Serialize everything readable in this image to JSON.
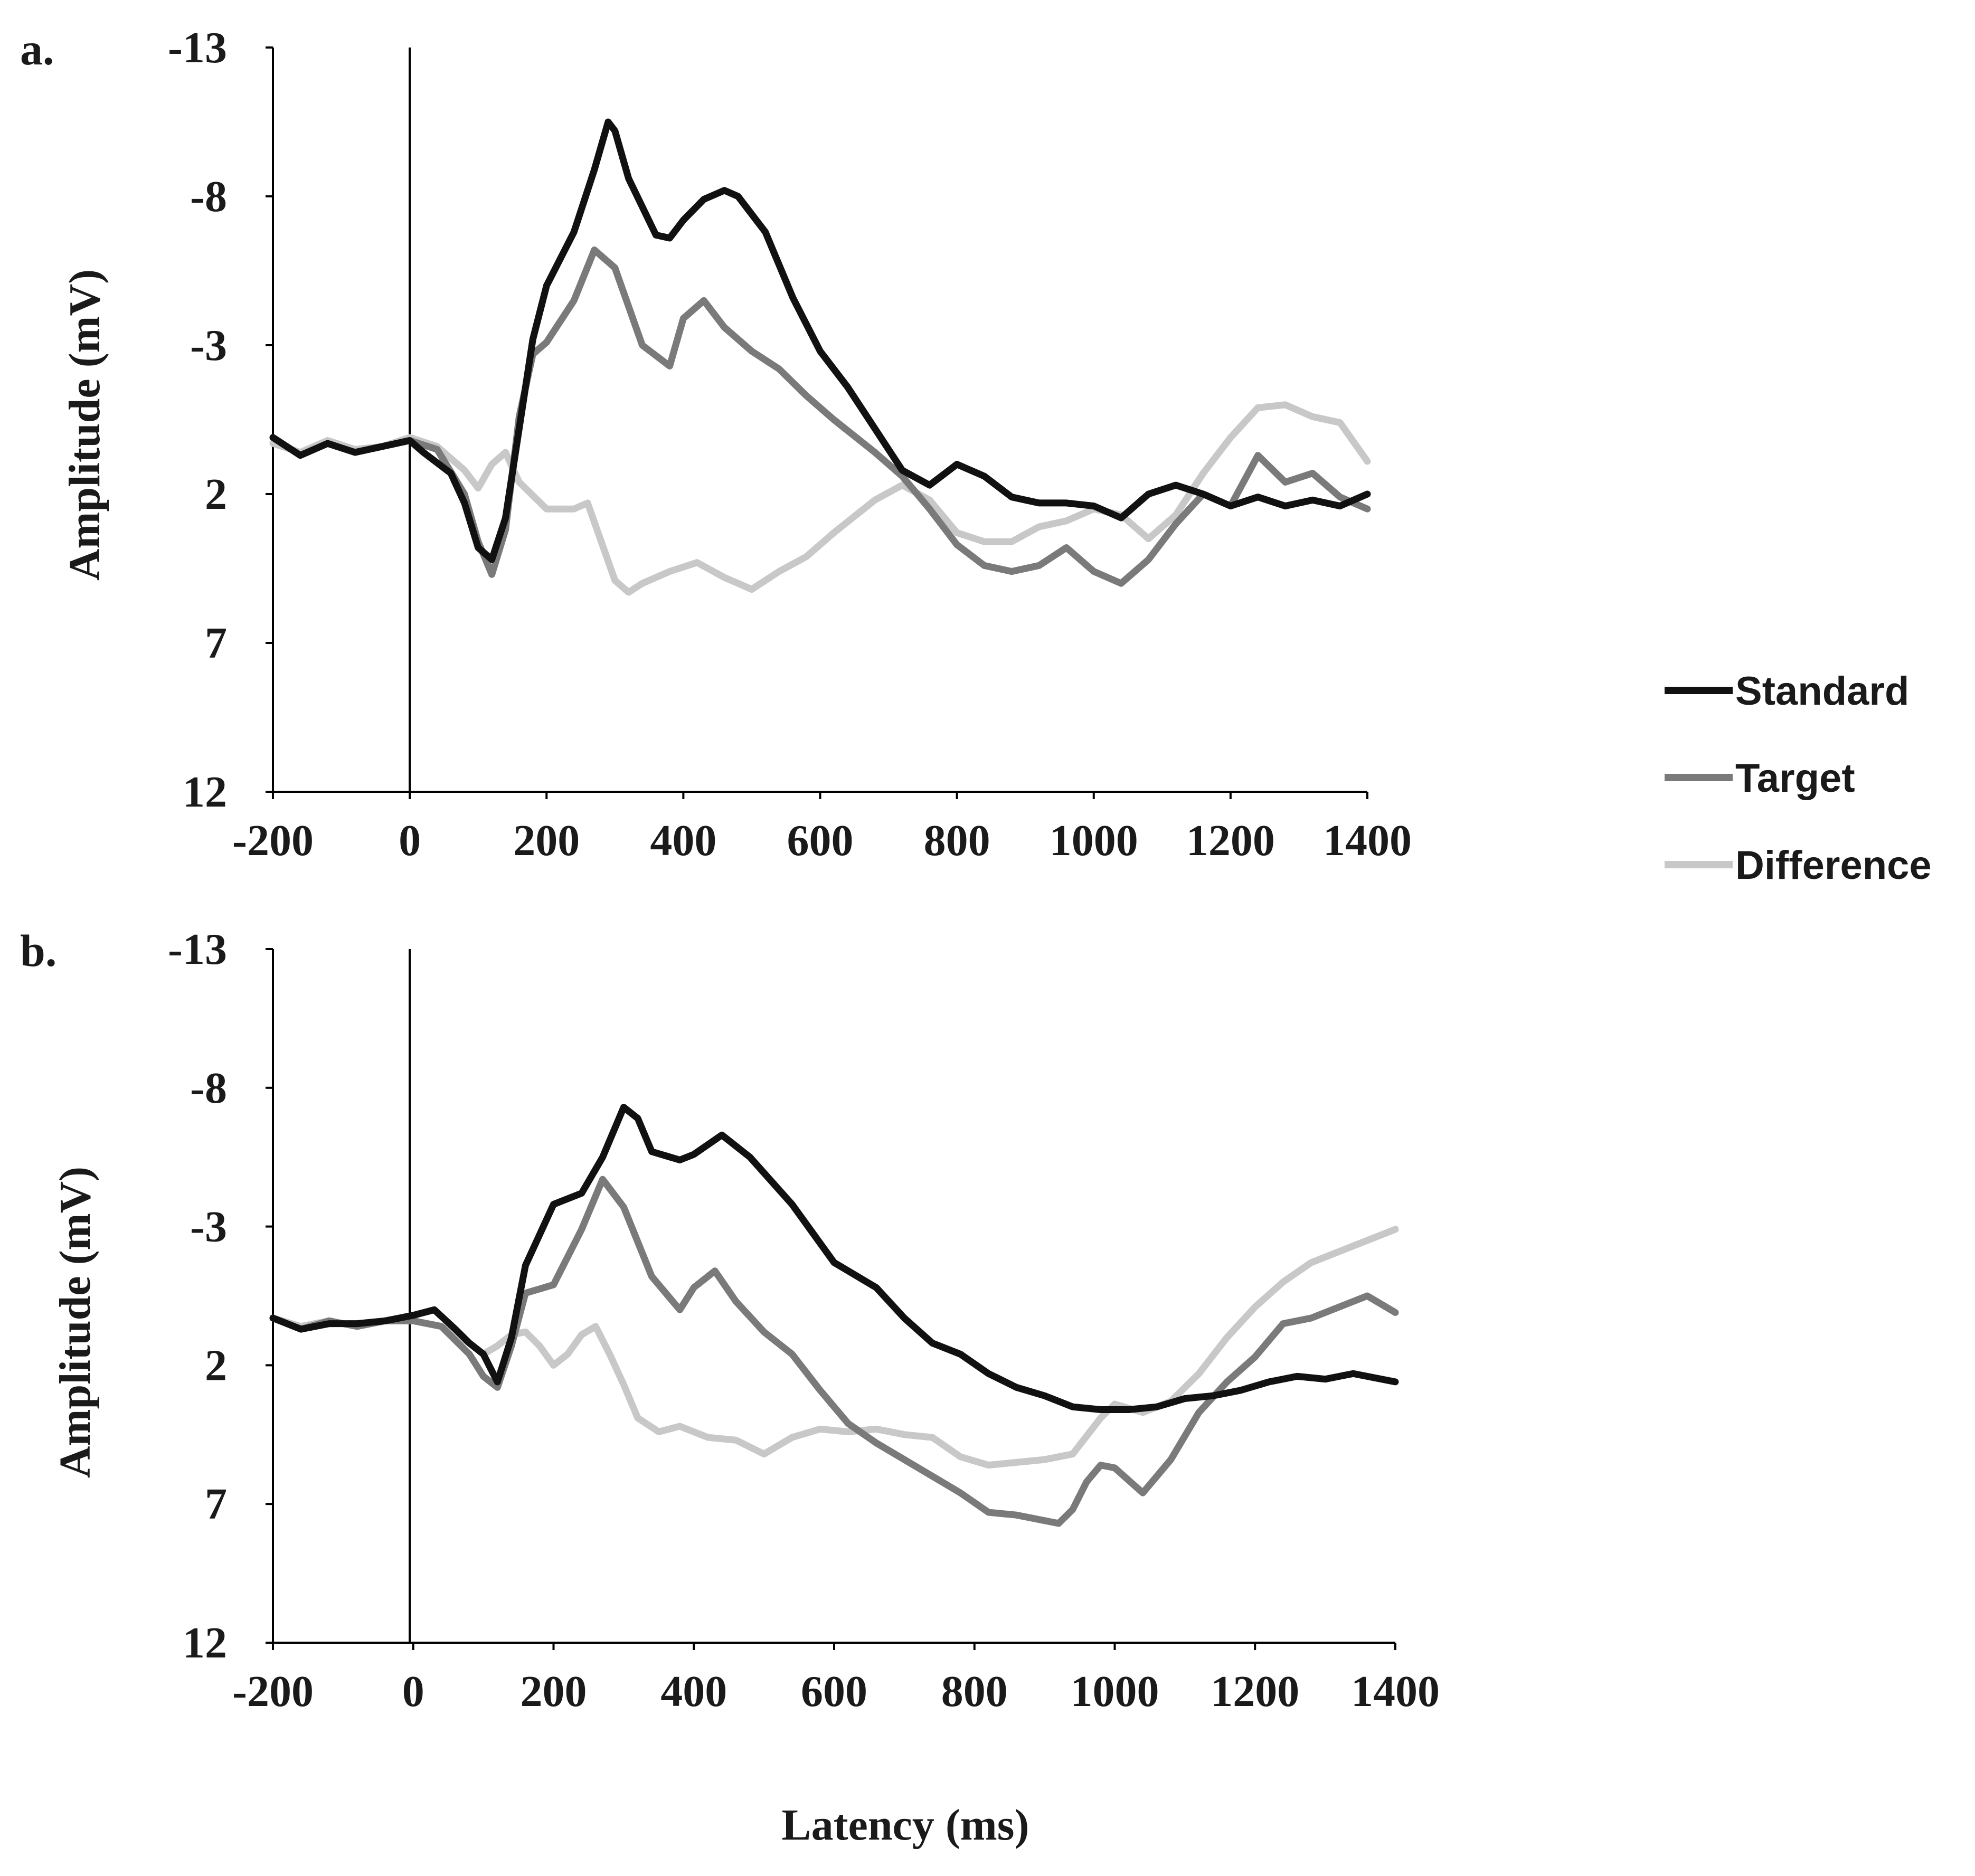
{
  "figure": {
    "x_axis_title": "Latency (ms)",
    "legend": [
      {
        "name": "Standard",
        "color": "#111111"
      },
      {
        "name": "Target",
        "color": "#7a7a7a"
      },
      {
        "name": "Difference",
        "color": "#c8c8c8"
      }
    ]
  },
  "chart_data": [
    {
      "type": "line",
      "panel_label": "a.",
      "title": "",
      "xlabel": "Latency (ms)",
      "ylabel": "Amplitude (mV)",
      "xlim": [
        -200,
        1400
      ],
      "ylim": [
        12,
        -13
      ],
      "y_inverted": true,
      "xticks": [
        -200,
        0,
        200,
        400,
        600,
        800,
        1000,
        1200,
        1400
      ],
      "yticks": [
        -13,
        -8,
        -3,
        2,
        7,
        12
      ],
      "series": [
        {
          "name": "Standard",
          "color": "#111111",
          "x": [
            -200,
            -160,
            -120,
            -80,
            -40,
            0,
            20,
            60,
            80,
            100,
            120,
            140,
            160,
            180,
            200,
            240,
            270,
            290,
            300,
            320,
            360,
            380,
            400,
            430,
            460,
            480,
            520,
            560,
            600,
            640,
            680,
            720,
            760,
            800,
            840,
            880,
            920,
            960,
            1000,
            1040,
            1080,
            1120,
            1160,
            1200,
            1240,
            1280,
            1320,
            1360,
            1400
          ],
          "y": [
            0.1,
            0.7,
            0.3,
            0.6,
            0.4,
            0.2,
            0.6,
            1.3,
            2.3,
            3.8,
            4.2,
            2.8,
            -0.2,
            -3.2,
            -5.0,
            -6.8,
            -8.9,
            -10.5,
            -10.2,
            -8.6,
            -6.7,
            -6.6,
            -7.2,
            -7.9,
            -8.2,
            -8.0,
            -6.8,
            -4.6,
            -2.8,
            -1.6,
            -0.2,
            1.2,
            1.7,
            1.0,
            1.4,
            2.1,
            2.3,
            2.3,
            2.4,
            2.8,
            2.0,
            1.7,
            2.0,
            2.4,
            2.1,
            2.4,
            2.2,
            2.4,
            2.0
          ]
        },
        {
          "name": "Target",
          "color": "#7a7a7a",
          "x": [
            -200,
            -160,
            -120,
            -80,
            -40,
            0,
            40,
            80,
            100,
            120,
            140,
            160,
            180,
            200,
            240,
            270,
            300,
            340,
            380,
            400,
            430,
            460,
            500,
            540,
            580,
            620,
            680,
            720,
            760,
            800,
            840,
            880,
            920,
            960,
            1000,
            1040,
            1080,
            1120,
            1160,
            1200,
            1240,
            1280,
            1320,
            1360,
            1400
          ],
          "y": [
            0.1,
            0.7,
            0.3,
            0.6,
            0.4,
            0.2,
            0.5,
            2.0,
            3.6,
            4.7,
            3.2,
            -0.6,
            -2.7,
            -3.1,
            -4.5,
            -6.2,
            -5.6,
            -3.0,
            -2.3,
            -3.9,
            -4.5,
            -3.6,
            -2.8,
            -2.2,
            -1.3,
            -0.5,
            0.6,
            1.4,
            2.5,
            3.7,
            4.4,
            4.6,
            4.4,
            3.8,
            4.6,
            5.0,
            4.2,
            3.0,
            2.0,
            2.4,
            0.7,
            1.6,
            1.3,
            2.1,
            2.5
          ]
        },
        {
          "name": "Difference",
          "color": "#c8c8c8",
          "x": [
            -200,
            -160,
            -120,
            -80,
            -40,
            0,
            40,
            80,
            100,
            120,
            140,
            160,
            200,
            240,
            260,
            280,
            300,
            320,
            340,
            380,
            420,
            460,
            500,
            540,
            580,
            620,
            680,
            720,
            760,
            800,
            840,
            880,
            920,
            960,
            1000,
            1040,
            1080,
            1120,
            1160,
            1200,
            1240,
            1280,
            1320,
            1360,
            1400
          ],
          "y": [
            0.3,
            0.6,
            0.2,
            0.5,
            0.4,
            0.1,
            0.4,
            1.2,
            1.8,
            1.0,
            0.6,
            1.6,
            2.5,
            2.5,
            2.3,
            3.6,
            4.9,
            5.3,
            5.0,
            4.6,
            4.3,
            4.8,
            5.2,
            4.6,
            4.1,
            3.3,
            2.2,
            1.7,
            2.2,
            3.3,
            3.6,
            3.6,
            3.1,
            2.9,
            2.5,
            2.7,
            3.5,
            2.7,
            1.3,
            0.1,
            -0.9,
            -1.0,
            -0.6,
            -0.4,
            0.9
          ]
        }
      ]
    },
    {
      "type": "line",
      "panel_label": "b.",
      "title": "",
      "xlabel": "Latency (ms)",
      "ylabel": "Amplitude (mV)",
      "xlim": [
        -200,
        1400
      ],
      "ylim": [
        12,
        -13
      ],
      "y_inverted": true,
      "xticks": [
        -200,
        0,
        200,
        400,
        600,
        800,
        1000,
        1200,
        1400
      ],
      "yticks": [
        -13,
        -8,
        -3,
        2,
        7,
        12
      ],
      "series": [
        {
          "name": "Standard",
          "color": "#111111",
          "x": [
            -200,
            -160,
            -120,
            -80,
            -40,
            0,
            30,
            60,
            80,
            100,
            120,
            140,
            160,
            200,
            240,
            270,
            300,
            320,
            340,
            380,
            400,
            440,
            480,
            540,
            600,
            660,
            700,
            740,
            780,
            820,
            860,
            900,
            940,
            980,
            1020,
            1060,
            1100,
            1140,
            1180,
            1220,
            1260,
            1300,
            1340,
            1400
          ],
          "y": [
            0.3,
            0.7,
            0.5,
            0.5,
            0.4,
            0.2,
            0.0,
            0.7,
            1.2,
            1.6,
            2.6,
            1.0,
            -1.6,
            -3.8,
            -4.2,
            -5.5,
            -7.3,
            -6.9,
            -5.7,
            -5.4,
            -5.6,
            -6.3,
            -5.5,
            -3.8,
            -1.7,
            -0.8,
            0.3,
            1.2,
            1.6,
            2.3,
            2.8,
            3.1,
            3.5,
            3.6,
            3.6,
            3.5,
            3.2,
            3.1,
            2.9,
            2.6,
            2.4,
            2.5,
            2.3,
            2.6
          ]
        },
        {
          "name": "Target",
          "color": "#7a7a7a",
          "x": [
            -200,
            -160,
            -120,
            -80,
            -40,
            0,
            40,
            80,
            100,
            120,
            140,
            160,
            200,
            240,
            270,
            300,
            340,
            380,
            400,
            430,
            460,
            500,
            540,
            580,
            620,
            660,
            700,
            740,
            780,
            820,
            860,
            900,
            920,
            940,
            960,
            980,
            1000,
            1040,
            1080,
            1120,
            1160,
            1200,
            1240,
            1280,
            1320,
            1360,
            1400
          ],
          "y": [
            0.3,
            0.7,
            0.4,
            0.6,
            0.4,
            0.4,
            0.6,
            1.6,
            2.4,
            2.8,
            1.3,
            -0.6,
            -0.9,
            -2.9,
            -4.7,
            -3.7,
            -1.2,
            0.0,
            -0.8,
            -1.4,
            -0.3,
            0.8,
            1.6,
            2.9,
            4.1,
            4.8,
            5.4,
            6.0,
            6.6,
            7.3,
            7.4,
            7.6,
            7.7,
            7.2,
            6.2,
            5.6,
            5.7,
            6.6,
            5.4,
            3.7,
            2.6,
            1.7,
            0.5,
            0.3,
            -0.1,
            -0.5,
            0.1
          ]
        },
        {
          "name": "Difference",
          "color": "#c8c8c8",
          "x": [
            -200,
            -160,
            -120,
            -80,
            -40,
            0,
            40,
            80,
            100,
            120,
            140,
            160,
            180,
            200,
            220,
            240,
            260,
            280,
            300,
            320,
            350,
            380,
            420,
            460,
            500,
            540,
            580,
            620,
            660,
            700,
            740,
            780,
            820,
            860,
            900,
            940,
            980,
            1000,
            1040,
            1080,
            1120,
            1160,
            1200,
            1240,
            1280,
            1320,
            1360,
            1400
          ],
          "y": [
            0.3,
            0.6,
            0.4,
            0.6,
            0.4,
            0.4,
            0.6,
            1.2,
            1.6,
            1.3,
            0.9,
            0.8,
            1.3,
            2.0,
            1.6,
            0.9,
            0.6,
            1.6,
            2.7,
            3.9,
            4.4,
            4.2,
            4.6,
            4.7,
            5.2,
            4.6,
            4.3,
            4.4,
            4.3,
            4.5,
            4.6,
            5.3,
            5.6,
            5.5,
            5.4,
            5.2,
            3.9,
            3.4,
            3.7,
            3.3,
            2.3,
            1.0,
            -0.1,
            -1.0,
            -1.7,
            -2.1,
            -2.5,
            -2.9
          ]
        }
      ]
    }
  ]
}
